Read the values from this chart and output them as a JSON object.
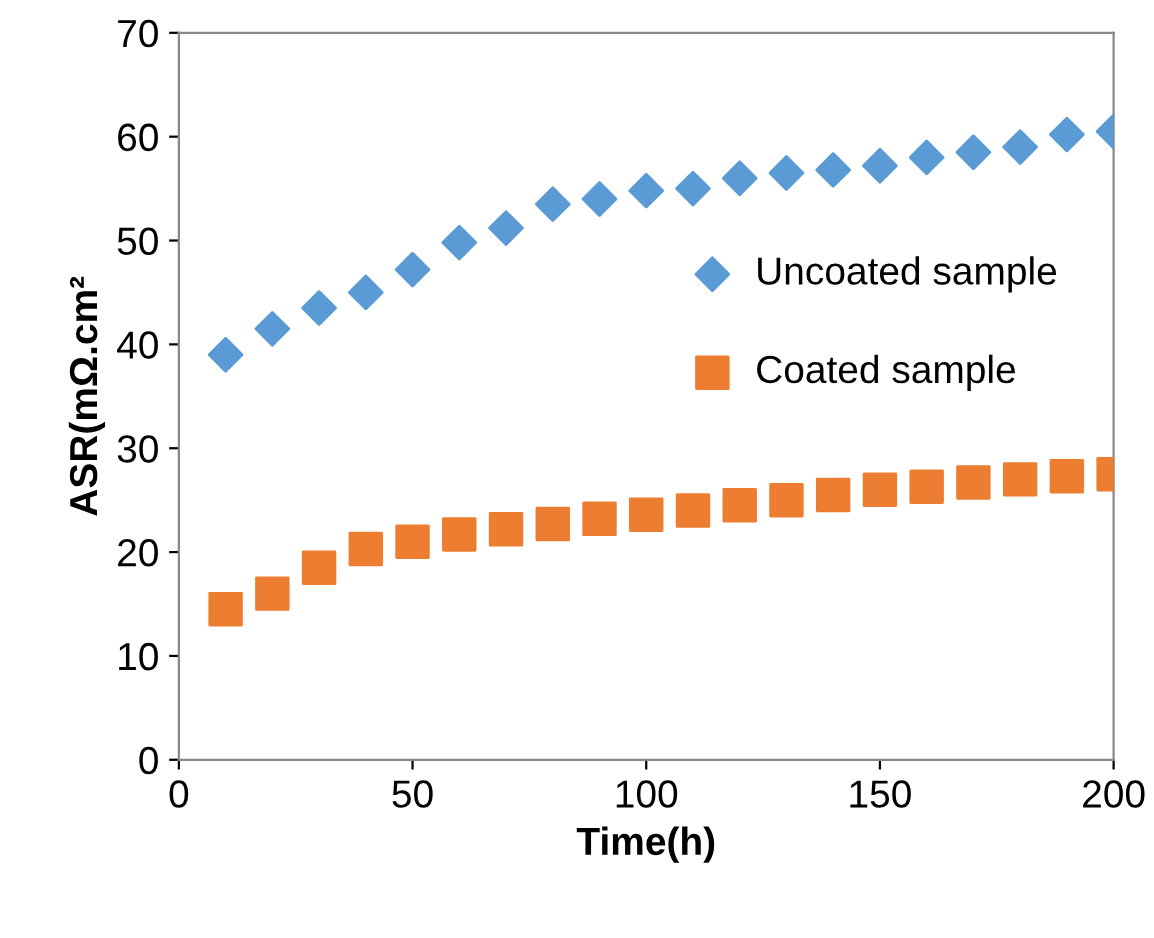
{
  "chart_data": {
    "type": "scatter",
    "xlabel": "Time(h)",
    "ylabel": "ASR(mΩ.cm²",
    "x": [
      10,
      20,
      30,
      40,
      50,
      60,
      70,
      80,
      90,
      100,
      110,
      120,
      130,
      140,
      150,
      160,
      170,
      180,
      190,
      200
    ],
    "series": [
      {
        "name": "Uncoated sample",
        "color": "#5b9bd5",
        "marker": "diamond",
        "values": [
          39,
          41.5,
          43.5,
          45,
          47.2,
          49.8,
          51.2,
          53.5,
          54,
          54.8,
          55,
          56,
          56.5,
          56.8,
          57.2,
          58,
          58.5,
          59,
          60.2,
          60.5
        ]
      },
      {
        "name": "Coated sample",
        "color": "#ed7d31",
        "marker": "square",
        "values": [
          14.5,
          16,
          18.5,
          20.3,
          21,
          21.7,
          22.2,
          22.7,
          23.2,
          23.6,
          24,
          24.5,
          25,
          25.5,
          26,
          26.3,
          26.7,
          27,
          27.3,
          27.5
        ]
      }
    ],
    "xlim": [
      0,
      200
    ],
    "xticks": [
      0,
      50,
      100,
      150,
      200
    ],
    "ylim": [
      0,
      70
    ],
    "yticks": [
      0,
      10,
      20,
      30,
      40,
      50,
      60,
      70
    ],
    "grid": false,
    "legend": "center right"
  }
}
